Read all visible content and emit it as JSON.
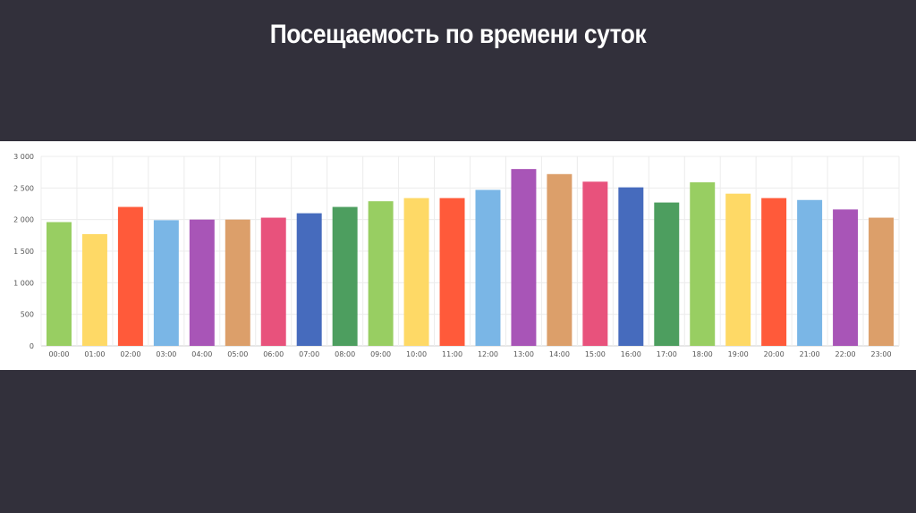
{
  "slide": {
    "title": "Посещаемость по времени суток"
  },
  "chart_data": {
    "type": "bar",
    "categories": [
      "00:00",
      "01:00",
      "02:00",
      "03:00",
      "04:00",
      "05:00",
      "06:00",
      "07:00",
      "08:00",
      "09:00",
      "10:00",
      "11:00",
      "12:00",
      "13:00",
      "14:00",
      "15:00",
      "16:00",
      "17:00",
      "18:00",
      "19:00",
      "20:00",
      "21:00",
      "22:00",
      "23:00"
    ],
    "values": [
      1960,
      1770,
      2200,
      1990,
      2000,
      2000,
      2030,
      2100,
      2200,
      2290,
      2340,
      2340,
      2470,
      2800,
      2720,
      2600,
      2510,
      2270,
      2590,
      2410,
      2340,
      2310,
      2160,
      2030
    ],
    "colors": [
      "#98ce62",
      "#fed966",
      "#ff5a3a",
      "#7ab6e6",
      "#a855b7",
      "#dc9f6a",
      "#e8527c",
      "#466bbd",
      "#4d9e5f",
      "#98ce62",
      "#fed966",
      "#ff5a3a",
      "#7ab6e6",
      "#a855b7",
      "#dc9f6a",
      "#e8527c",
      "#466bbd",
      "#4d9e5f",
      "#98ce62",
      "#fed966",
      "#ff5a3a",
      "#7ab6e6",
      "#a855b7",
      "#dc9f6a"
    ],
    "y_ticks": [
      "0",
      "500",
      "1 000",
      "1 500",
      "2 000",
      "2 500",
      "3 000"
    ],
    "ylim": [
      0,
      3000
    ],
    "grid": true
  }
}
